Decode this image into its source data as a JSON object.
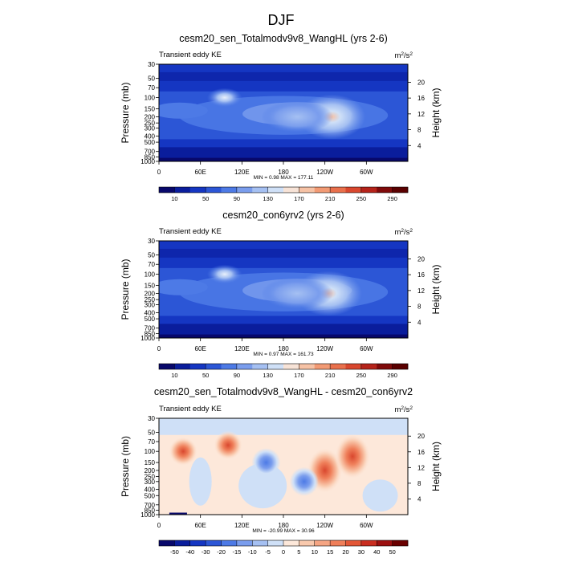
{
  "page_title": "DJF",
  "chart_data": [
    {
      "type": "heatmap",
      "title": "cesm20_sen_Totalmodv9v8_WangHL (yrs 2-6)",
      "left_label": "Transient eddy KE",
      "units_base": "m",
      "units_sup1": "2",
      "units_mid": "/s",
      "units_sup2": "2",
      "ylabel": "Pressure (mb)",
      "y2label": "Height (km)",
      "pressure_ticks": [
        "30",
        "50",
        "70",
        "100",
        "150",
        "200",
        "250",
        "300",
        "400",
        "500",
        "700",
        "850",
        "1000"
      ],
      "height_ticks": [
        "4",
        "8",
        "12",
        "16",
        "20"
      ],
      "lon_ticks": [
        "0",
        "60E",
        "120E",
        "180",
        "120W",
        "60W"
      ],
      "stats": "MIN =   0.98  MAX = 177.11",
      "colorbar_labels": [
        "10",
        "50",
        "90",
        "130",
        "170",
        "210",
        "250",
        "290"
      ],
      "colorbar_colors": [
        "#08086b",
        "#0a1d9c",
        "#1536c2",
        "#2c56d6",
        "#4d7ae6",
        "#7a9ded",
        "#a5c0f2",
        "#cfe0f7",
        "#f7e3d7",
        "#f6c2a5",
        "#f29a74",
        "#e9704c",
        "#d9472e",
        "#b5231a",
        "#800a0a",
        "#5a0000"
      ],
      "features": [
        {
          "lon": 95,
          "p": 100,
          "value": 120
        },
        {
          "lon": 250,
          "p": 200,
          "value": 177
        },
        {
          "lon": 200,
          "p": 200,
          "value": 90
        }
      ]
    },
    {
      "type": "heatmap",
      "title": "cesm20_con6yrv2 (yrs 2-6)",
      "left_label": "Transient eddy KE",
      "units_base": "m",
      "units_sup1": "2",
      "units_mid": "/s",
      "units_sup2": "2",
      "ylabel": "Pressure (mb)",
      "y2label": "Height (km)",
      "pressure_ticks": [
        "30",
        "50",
        "70",
        "100",
        "150",
        "200",
        "250",
        "300",
        "400",
        "500",
        "700",
        "850",
        "1000"
      ],
      "height_ticks": [
        "4",
        "8",
        "12",
        "16",
        "20"
      ],
      "lon_ticks": [
        "0",
        "60E",
        "120E",
        "180",
        "120W",
        "60W"
      ],
      "stats": "MIN =   0.97  MAX = 161.73",
      "colorbar_labels": [
        "10",
        "50",
        "90",
        "130",
        "170",
        "210",
        "250",
        "290"
      ],
      "colorbar_colors": [
        "#08086b",
        "#0a1d9c",
        "#1536c2",
        "#2c56d6",
        "#4d7ae6",
        "#7a9ded",
        "#a5c0f2",
        "#cfe0f7",
        "#f7e3d7",
        "#f6c2a5",
        "#f29a74",
        "#e9704c",
        "#d9472e",
        "#b5231a",
        "#800a0a",
        "#5a0000"
      ],
      "features": [
        {
          "lon": 95,
          "p": 100,
          "value": 110
        },
        {
          "lon": 245,
          "p": 200,
          "value": 161
        },
        {
          "lon": 200,
          "p": 200,
          "value": 90
        }
      ]
    },
    {
      "type": "heatmap",
      "title": "cesm20_sen_Totalmodv9v8_WangHL - cesm20_con6yrv2",
      "left_label": "Transient eddy KE",
      "units_base": "m",
      "units_sup1": "2",
      "units_mid": "/s",
      "units_sup2": "2",
      "ylabel": "Pressure (mb)",
      "y2label": "Height (km)",
      "pressure_ticks": [
        "30",
        "50",
        "70",
        "100",
        "150",
        "200",
        "250",
        "300",
        "400",
        "500",
        "700",
        "850",
        "1000"
      ],
      "height_ticks": [
        "4",
        "8",
        "12",
        "16",
        "20"
      ],
      "lon_ticks": [
        "0",
        "60E",
        "120E",
        "180",
        "120W",
        "60W"
      ],
      "stats": "MIN = -20.99  MAX =  30.96",
      "colorbar_labels": [
        "-50",
        "-40",
        "-30",
        "-20",
        "-15",
        "-10",
        "-5",
        "0",
        "5",
        "10",
        "15",
        "20",
        "30",
        "40",
        "50"
      ],
      "colorbar_colors": [
        "#08086b",
        "#0a1d9c",
        "#1536c2",
        "#2c56d6",
        "#4d7ae6",
        "#7a9ded",
        "#a5c0f2",
        "#cfe0f7",
        "#fde8da",
        "#f9c9ad",
        "#f5a583",
        "#ef7f5a",
        "#e35737",
        "#c92e20",
        "#9c1010",
        "#6a0000"
      ],
      "features": [
        {
          "lon": 35,
          "p": 100,
          "value": 22
        },
        {
          "lon": 100,
          "p": 80,
          "value": 20
        },
        {
          "lon": 155,
          "p": 150,
          "value": -18
        },
        {
          "lon": 240,
          "p": 200,
          "value": 25
        },
        {
          "lon": 280,
          "p": 120,
          "value": 31
        },
        {
          "lon": 210,
          "p": 300,
          "value": -10
        }
      ]
    }
  ]
}
